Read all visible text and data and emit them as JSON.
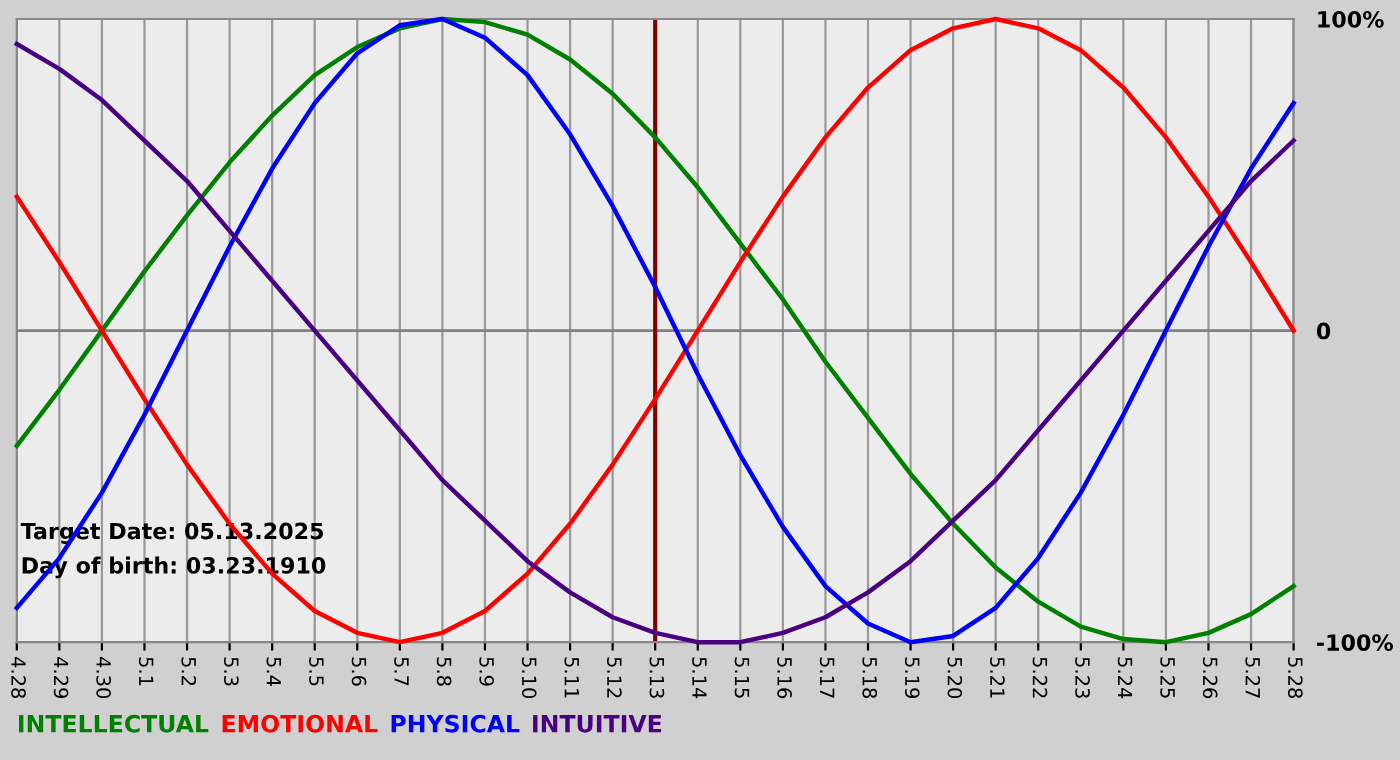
{
  "chart_data": {
    "type": "line",
    "categories": [
      "4.28",
      "4.29",
      "4.30",
      "5.1",
      "5.2",
      "5.3",
      "5.4",
      "5.5",
      "5.6",
      "5.7",
      "5.8",
      "5.9",
      "5.10",
      "5.11",
      "5.12",
      "5.13",
      "5.14",
      "5.15",
      "5.16",
      "5.17",
      "5.18",
      "5.19",
      "5.20",
      "5.21",
      "5.22",
      "5.23",
      "5.24",
      "5.25",
      "5.26",
      "5.27",
      "5.28"
    ],
    "series": [
      {
        "name": "INTELLECTUAL",
        "color": "#008000",
        "values": [
          -37,
          -19,
          0,
          19,
          37,
          54,
          69,
          82,
          91,
          97,
          100,
          99,
          95,
          87,
          76,
          62,
          46,
          28,
          10,
          -10,
          -28,
          -46,
          -62,
          -76,
          -87,
          -95,
          -99,
          -100,
          -97,
          -91,
          -82
        ]
      },
      {
        "name": "EMOTIONAL",
        "color": "#ff0000",
        "values": [
          43,
          22,
          0,
          -22,
          -43,
          -62,
          -78,
          -90,
          -97,
          -100,
          -97,
          -90,
          -78,
          -62,
          -43,
          -22,
          0,
          22,
          43,
          62,
          78,
          90,
          97,
          100,
          97,
          90,
          78,
          62,
          43,
          22,
          0
        ]
      },
      {
        "name": "PHYSICAL",
        "color": "#0000ff",
        "values": [
          -89,
          -73,
          -52,
          -27,
          0,
          27,
          52,
          73,
          89,
          98,
          100,
          94,
          82,
          63,
          40,
          14,
          -14,
          -40,
          -63,
          -82,
          -94,
          -100,
          -98,
          -89,
          -73,
          -52,
          -27,
          0,
          27,
          52,
          73
        ]
      },
      {
        "name": "INTUITIVE",
        "color": "#4b0082",
        "values": [
          92,
          84,
          74,
          61,
          48,
          32,
          16,
          0,
          -16,
          -32,
          -48,
          -61,
          -74,
          -84,
          -92,
          -97,
          -100,
          -100,
          -97,
          -92,
          -84,
          -74,
          -61,
          -48,
          -32,
          -16,
          0,
          16,
          32,
          48,
          61
        ]
      }
    ],
    "ylim": [
      -100,
      100
    ],
    "yticks": [
      {
        "value": 100,
        "label": "100%"
      },
      0,
      {
        "value": -100,
        "label": "-100%"
      }
    ],
    "grid": "x",
    "legend": "bottom left",
    "marker": "none",
    "line_style": "solid",
    "ref_lines": [
      {
        "axis": "y",
        "value": 0,
        "label": null,
        "color": "#808080"
      },
      {
        "axis": "x",
        "value": "5.13",
        "label": null,
        "color": "#800000"
      }
    ],
    "annotations": [
      "Target Date: 05.13.2025",
      "Day of birth: 03.23.1910"
    ]
  }
}
